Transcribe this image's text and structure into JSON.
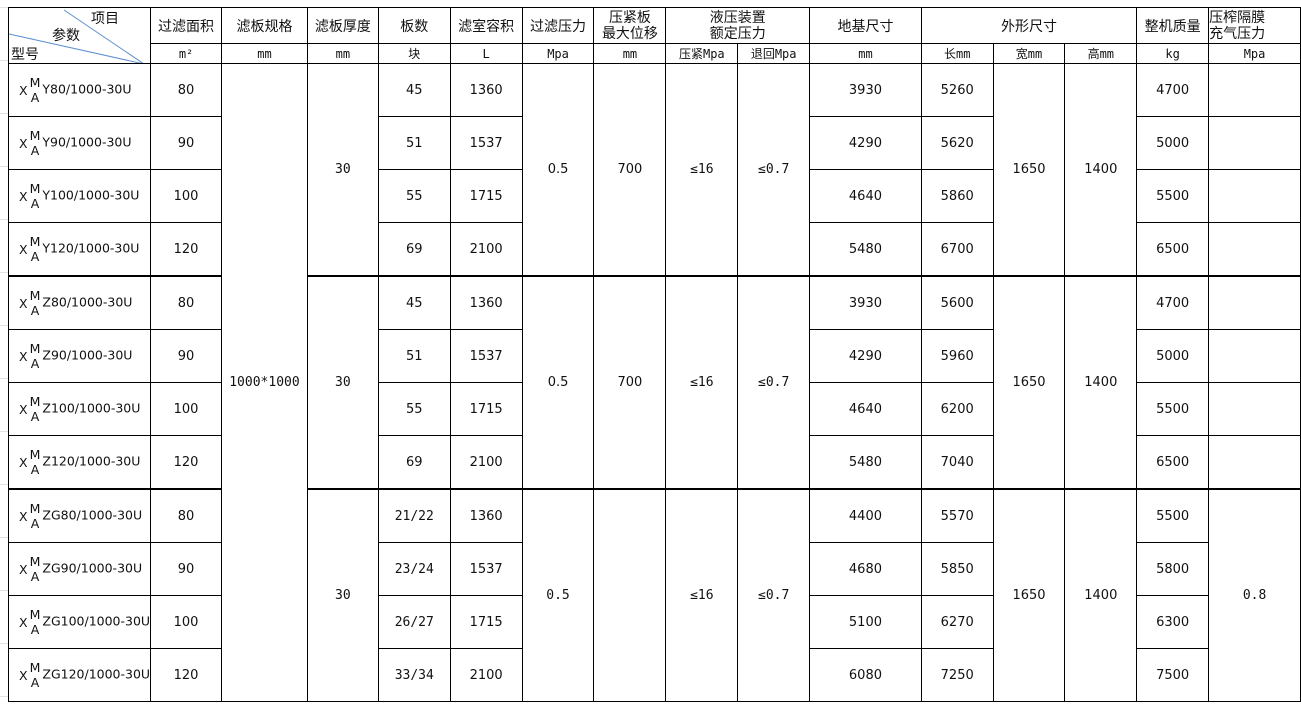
{
  "header": {
    "corner": {
      "item": "项目",
      "param": "参数",
      "model": "型号"
    },
    "columns": [
      "过滤面积",
      "滤板规格",
      "滤板厚度",
      "板数",
      "滤室容积",
      "过滤压力"
    ],
    "stroke_plate": [
      "压紧板",
      "最大位移"
    ],
    "hydraulic": [
      "液压装置",
      "额定压力"
    ],
    "foundation": "地基尺寸",
    "outline": "外形尺寸",
    "weight": "整机质量",
    "diaphragm": [
      "压榨隔膜",
      "充气压力"
    ],
    "units": [
      "m²",
      "mm",
      "mm",
      "块",
      "L",
      "Mpa",
      "mm",
      "压紧Mpa",
      "退回Mpa",
      "mm",
      "长mm",
      "宽mm",
      "高mm",
      "kg",
      "Mpa"
    ]
  },
  "plate_spec": "1000*1000",
  "groups": [
    {
      "thickness": "30",
      "pressure": "0.5",
      "stroke": "700",
      "press": "≤16",
      "return": "≤0.7",
      "width": "1650",
      "height": "1400",
      "diaphragm": "",
      "rows": [
        {
          "series": "Y80/1000-30U",
          "area": "80",
          "plates": "45",
          "volume": "1360",
          "foundation": "3930",
          "length": "5260",
          "weight": "4700"
        },
        {
          "series": "Y90/1000-30U",
          "area": "90",
          "plates": "51",
          "volume": "1537",
          "foundation": "4290",
          "length": "5620",
          "weight": "5000"
        },
        {
          "series": "Y100/1000-30U",
          "area": "100",
          "plates": "55",
          "volume": "1715",
          "foundation": "4640",
          "length": "5860",
          "weight": "5500"
        },
        {
          "series": "Y120/1000-30U",
          "area": "120",
          "plates": "69",
          "volume": "2100",
          "foundation": "5480",
          "length": "6700",
          "weight": "6500"
        }
      ]
    },
    {
      "thickness": "30",
      "pressure": "0.5",
      "stroke": "700",
      "press": "≤16",
      "return": "≤0.7",
      "width": "1650",
      "height": "1400",
      "diaphragm": "",
      "rows": [
        {
          "series": "Z80/1000-30U",
          "area": "80",
          "plates": "45",
          "volume": "1360",
          "foundation": "3930",
          "length": "5600",
          "weight": "4700"
        },
        {
          "series": "Z90/1000-30U",
          "area": "90",
          "plates": "51",
          "volume": "1537",
          "foundation": "4290",
          "length": "5960",
          "weight": "5000"
        },
        {
          "series": "Z100/1000-30U",
          "area": "100",
          "plates": "55",
          "volume": "1715",
          "foundation": "4640",
          "length": "6200",
          "weight": "5500"
        },
        {
          "series": "Z120/1000-30U",
          "area": "120",
          "plates": "69",
          "volume": "2100",
          "foundation": "5480",
          "length": "7040",
          "weight": "6500"
        }
      ]
    },
    {
      "thickness": "30",
      "pressure": "0.5",
      "stroke": "",
      "press": "≤16",
      "return": "≤0.7",
      "width": "1650",
      "height": "1400",
      "diaphragm": "0.8",
      "rows": [
        {
          "series": "ZG80/1000-30U",
          "area": "80",
          "plates": "21/22",
          "volume": "1360",
          "foundation": "4400",
          "length": "5570",
          "weight": "5500"
        },
        {
          "series": "ZG90/1000-30U",
          "area": "90",
          "plates": "23/24",
          "volume": "1537",
          "foundation": "4680",
          "length": "5850",
          "weight": "5800"
        },
        {
          "series": "ZG100/1000-30U",
          "area": "100",
          "plates": "26/27",
          "volume": "1715",
          "foundation": "5100",
          "length": "6270",
          "weight": "6300"
        },
        {
          "series": "ZG120/1000-30U",
          "area": "120",
          "plates": "33/34",
          "volume": "2100",
          "foundation": "6080",
          "length": "7250",
          "weight": "7500"
        }
      ]
    }
  ],
  "model_prefix": {
    "x": "X",
    "sup": "M",
    "sub": "A"
  }
}
